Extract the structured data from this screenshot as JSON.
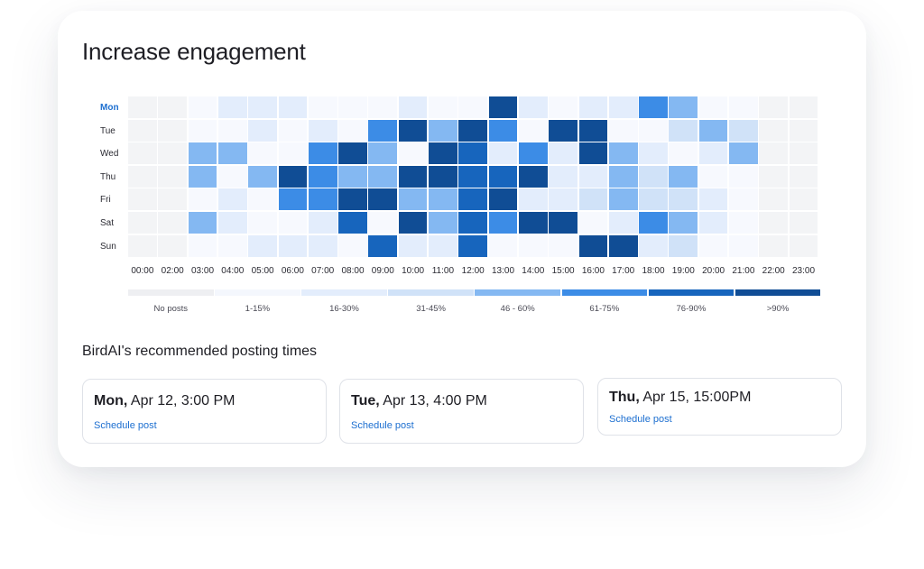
{
  "title": "Increase engagement",
  "heatmap": {
    "days": [
      "Mon",
      "Tue",
      "Wed",
      "Thu",
      "Fri",
      "Sat",
      "Sun"
    ],
    "active_day": "Mon",
    "hours": [
      "00:00",
      "02:00",
      "03:00",
      "04:00",
      "05:00",
      "06:00",
      "07:00",
      "08:00",
      "09:00",
      "10:00",
      "11:00",
      "12:00",
      "13:00",
      "14:00",
      "15:00",
      "16:00",
      "17:00",
      "18:00",
      "19:00",
      "20:00",
      "21:00",
      "22:00",
      "23:00"
    ],
    "levels": [
      [
        0,
        0,
        1,
        2,
        2,
        2,
        1,
        1,
        1,
        2,
        1,
        1,
        7,
        2,
        1,
        2,
        2,
        5,
        4,
        1,
        1,
        0,
        0
      ],
      [
        0,
        0,
        1,
        1,
        2,
        1,
        2,
        1,
        5,
        7,
        4,
        7,
        5,
        1,
        7,
        7,
        1,
        1,
        3,
        4,
        3,
        0,
        0
      ],
      [
        0,
        0,
        4,
        4,
        1,
        1,
        5,
        7,
        4,
        1,
        7,
        6,
        2,
        5,
        2,
        7,
        4,
        2,
        1,
        2,
        4,
        0,
        0
      ],
      [
        0,
        0,
        4,
        1,
        4,
        7,
        5,
        4,
        4,
        7,
        7,
        6,
        6,
        7,
        2,
        2,
        4,
        3,
        4,
        1,
        1,
        0,
        0
      ],
      [
        0,
        0,
        1,
        2,
        1,
        5,
        5,
        7,
        7,
        4,
        4,
        6,
        7,
        2,
        2,
        3,
        4,
        3,
        3,
        2,
        1,
        0,
        0
      ],
      [
        0,
        0,
        4,
        2,
        1,
        1,
        2,
        6,
        1,
        7,
        4,
        6,
        5,
        7,
        7,
        1,
        2,
        5,
        4,
        2,
        1,
        0,
        0
      ],
      [
        0,
        0,
        1,
        1,
        2,
        2,
        2,
        1,
        6,
        2,
        2,
        6,
        1,
        1,
        1,
        7,
        7,
        2,
        3,
        1,
        1,
        0,
        0
      ]
    ],
    "colors": [
      "#f3f4f6",
      "#f7f9fe",
      "#e3edfc",
      "#d0e2f8",
      "#84b8f2",
      "#3c8ce6",
      "#1765bd",
      "#104d95"
    ]
  },
  "legend": {
    "labels": [
      "No posts",
      "1-15%",
      "16-30%",
      "31-45%",
      "46 - 60%",
      "61-75%",
      "76-90%",
      ">90%"
    ],
    "colors": [
      "#eeeff2",
      "#f4f7fd",
      "#e3edfc",
      "#d0e2f8",
      "#84b8f2",
      "#3c8ce6",
      "#1765bd",
      "#104d95"
    ]
  },
  "recommendations": {
    "title": "BirdAI's recommended posting times",
    "items": [
      {
        "day": "Mon,",
        "time": "Apr 12, 3:00 PM",
        "link": "Schedule post"
      },
      {
        "day": "Tue,",
        "time": "Apr 13, 4:00 PM",
        "link": "Schedule post"
      },
      {
        "day": "Thu,",
        "time": "Apr 15, 15:00PM",
        "link": "Schedule post"
      }
    ]
  }
}
